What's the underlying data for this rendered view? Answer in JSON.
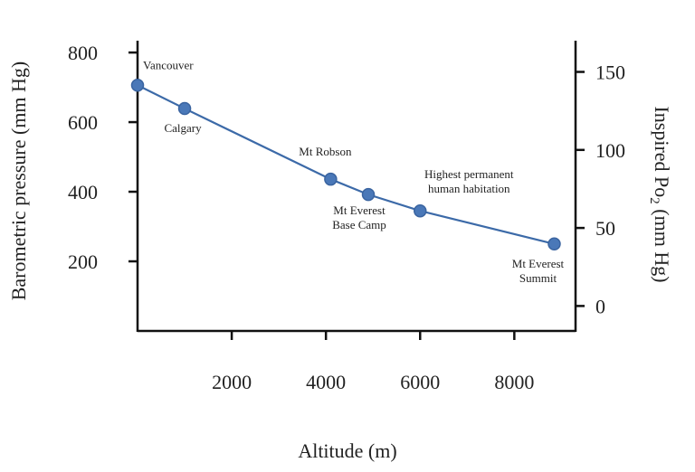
{
  "chart_data": {
    "type": "line",
    "xlabel": "Altitude (m)",
    "ylabel": "Barometric pressure  (mm Hg)",
    "ylabel_right": "Inspired Po2  (mm Hg)",
    "xlim": [
      0,
      9300
    ],
    "ylim": [
      0,
      834
    ],
    "ylim_right": [
      -16,
      170
    ],
    "xticks": [
      2000,
      4000,
      6000,
      8000
    ],
    "yticks": [
      200,
      400,
      600,
      800
    ],
    "yticks_right": [
      0,
      50,
      100,
      150
    ],
    "grid": false,
    "line_color": "#3c6aa8",
    "marker_color": "#4a78b8",
    "points": [
      {
        "x": 0,
        "y": 706,
        "label": [
          "Vancouver"
        ]
      },
      {
        "x": 1000,
        "y": 639,
        "label": [
          "Calgary"
        ]
      },
      {
        "x": 4100,
        "y": 436,
        "label": [
          "Mt Robson"
        ]
      },
      {
        "x": 4900,
        "y": 392,
        "label": [
          "Mt Everest",
          "Base Camp"
        ]
      },
      {
        "x": 6000,
        "y": 345,
        "label": [
          "Highest permanent",
          "human habitation"
        ]
      },
      {
        "x": 8848,
        "y": 250,
        "label": [
          "Mt Everest",
          "Summit"
        ]
      }
    ]
  }
}
